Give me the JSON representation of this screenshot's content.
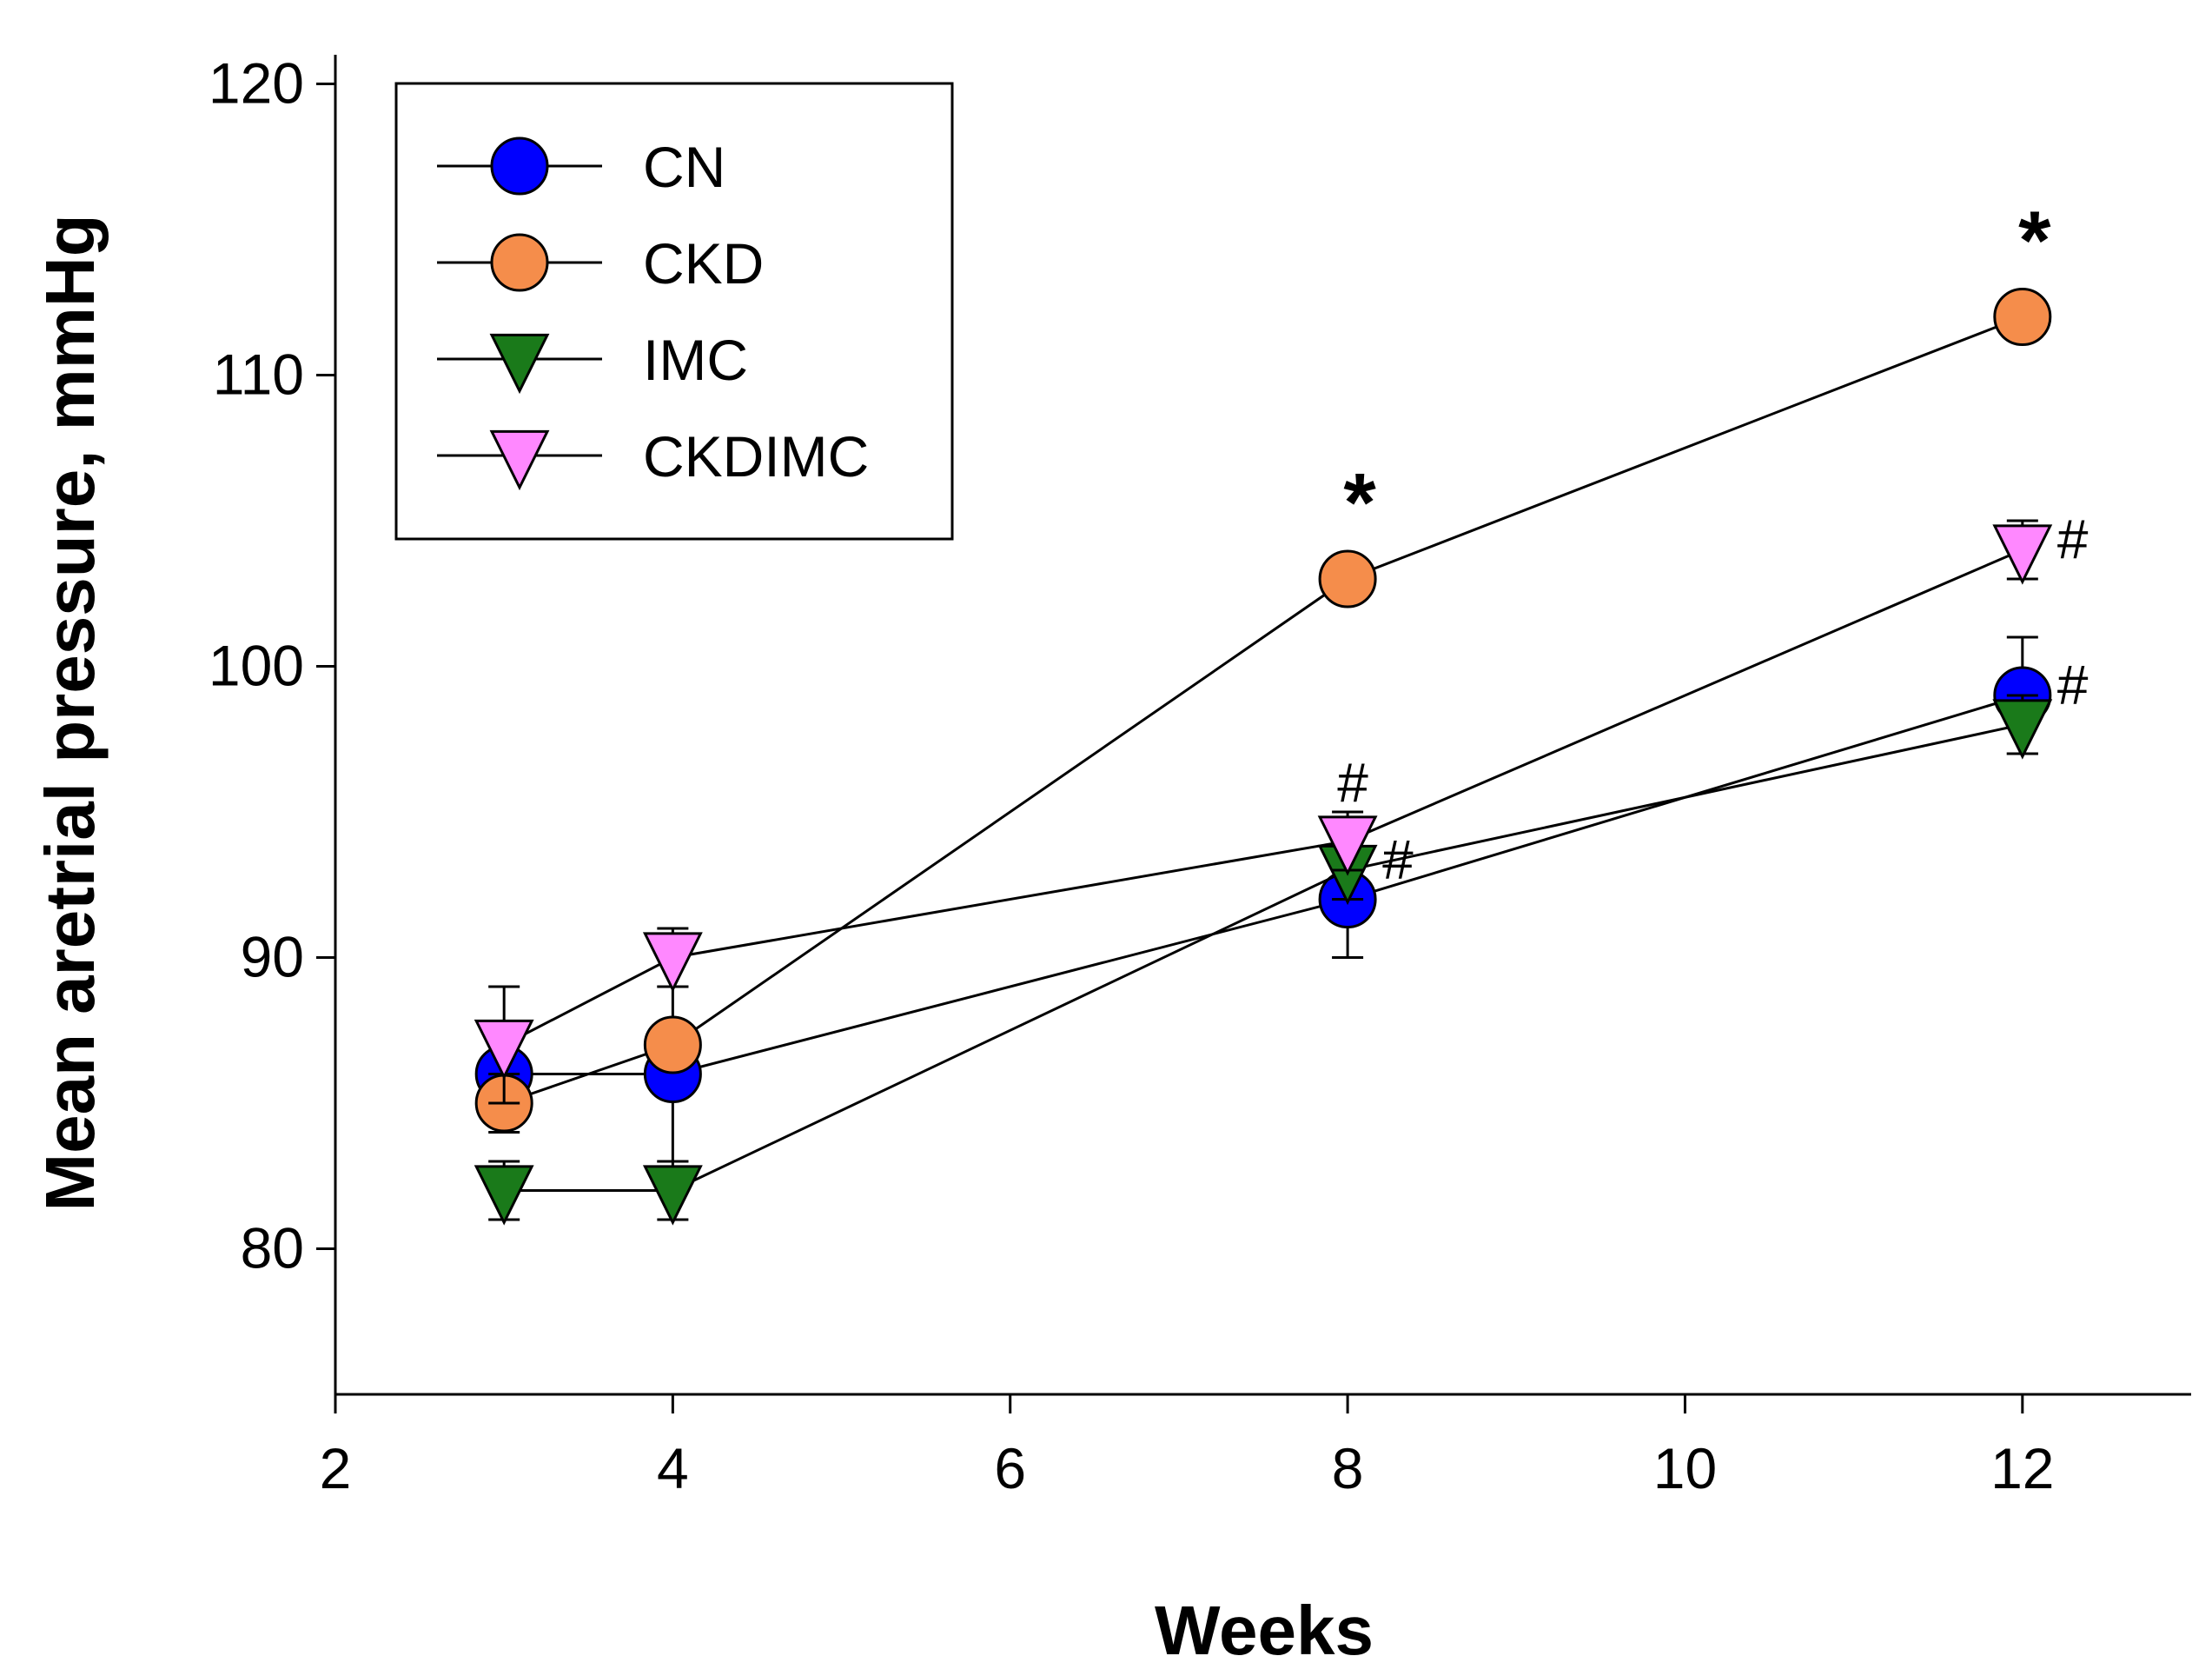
{
  "chart_data": {
    "type": "line",
    "title": "",
    "xlabel": "Weeks",
    "ylabel": "Mean aretrial pressure, mmHg",
    "xlim": [
      2,
      13
    ],
    "ylim": [
      75,
      121
    ],
    "x_ticks": [
      2,
      4,
      6,
      8,
      10,
      12
    ],
    "y_ticks": [
      80,
      90,
      100,
      110,
      120
    ],
    "grid": false,
    "legend_position": "top-left",
    "x": [
      3,
      4,
      8,
      12
    ],
    "series": [
      {
        "name": "CN",
        "marker": "circle",
        "color": "#0000ff",
        "values": [
          86,
          86,
          92,
          99
        ],
        "error": [
          0,
          3,
          2,
          2
        ]
      },
      {
        "name": "CKD",
        "marker": "circle",
        "color": "#f58d4b",
        "values": [
          85,
          87,
          103,
          112
        ],
        "error": [
          1,
          0,
          0,
          0
        ]
      },
      {
        "name": "IMC",
        "marker": "triangle-down",
        "color": "#1a7a1a",
        "values": [
          82,
          82,
          93,
          98
        ],
        "error": [
          1,
          1,
          1,
          1
        ]
      },
      {
        "name": "CKDIMC",
        "marker": "triangle-down",
        "color": "#ff88ff",
        "values": [
          87,
          90,
          94,
          104
        ],
        "error": [
          2,
          1,
          1,
          1
        ]
      }
    ],
    "annotations": [
      {
        "text": "*",
        "x": 8,
        "y": 103,
        "kind": "star"
      },
      {
        "text": "*",
        "x": 12,
        "y": 112,
        "kind": "star"
      },
      {
        "text": "#",
        "x": 8,
        "y": 94,
        "kind": "hash-above"
      },
      {
        "text": "#",
        "x": 8,
        "y": 93,
        "kind": "hash-right"
      },
      {
        "text": "#",
        "x": 12,
        "y": 104,
        "kind": "hash-right"
      },
      {
        "text": "#",
        "x": 12,
        "y": 99,
        "kind": "hash-right"
      }
    ]
  }
}
